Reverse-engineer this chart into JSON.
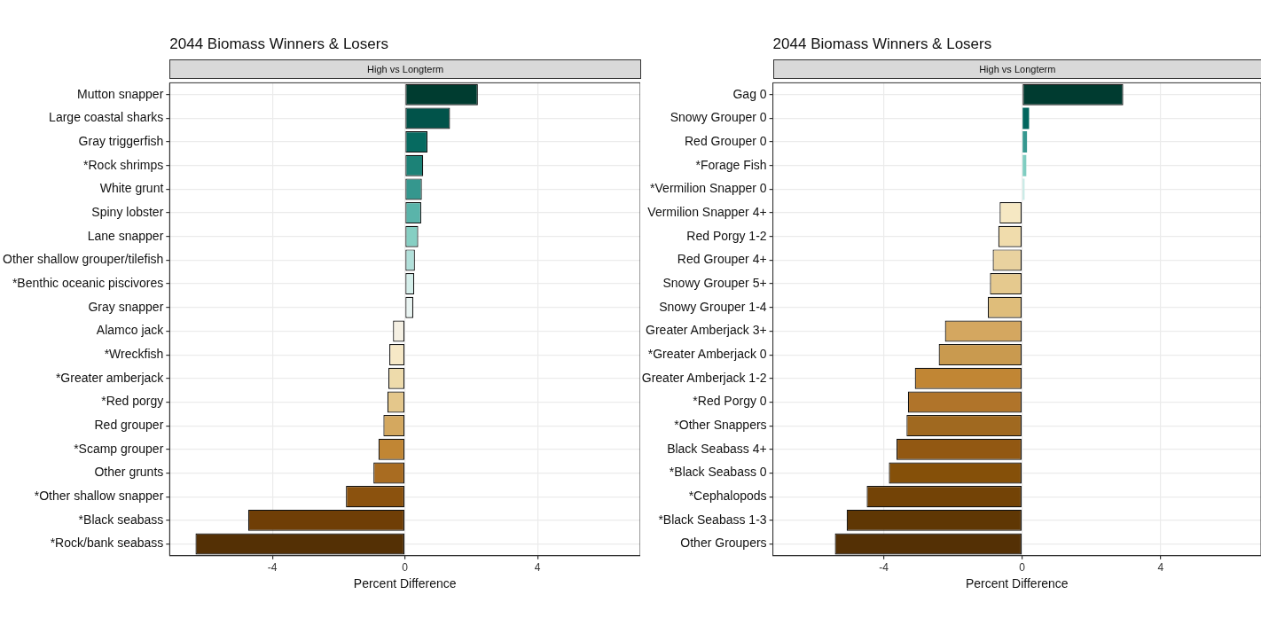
{
  "chart_data": [
    {
      "type": "bar",
      "orientation": "horizontal",
      "title": "2044 Biomass Winners & Losers",
      "subtitle": "High vs Longterm",
      "xlabel": "Percent Difference",
      "grid": true,
      "legend": false,
      "categories": [
        "Mutton snapper",
        "Large coastal sharks",
        "Gray triggerfish",
        "*Rock shrimps",
        "White grunt",
        "Spiny lobster",
        "Lane snapper",
        "Other shallow grouper/tilefish",
        "*Benthic oceanic piscivores",
        "Gray snapper",
        "Alamco jack",
        "*Wreckfish",
        "*Greater amberjack",
        "*Red porgy",
        "Red grouper",
        "*Scamp grouper",
        "Other grunts",
        "*Other shallow snapper",
        "*Black seabass",
        "*Rock/bank seabass"
      ],
      "values": [
        2.2,
        1.36,
        0.68,
        0.55,
        0.51,
        0.49,
        0.4,
        0.3,
        0.28,
        0.25,
        -0.36,
        -0.47,
        -0.5,
        -0.53,
        -0.65,
        -0.8,
        -0.95,
        -1.78,
        -4.73,
        -6.32
      ],
      "colors": [
        "#003c30",
        "#01534a",
        "#066a60",
        "#1c8277",
        "#35978e",
        "#5ab4aa",
        "#86cfc3",
        "#b1e0da",
        "#d4eeea",
        "#e9f4f2",
        "#f5f0e3",
        "#f6e8c6",
        "#eedbab",
        "#e4c78b",
        "#d4a85f",
        "#c18634",
        "#a96c21",
        "#8b520e",
        "#6f3e06",
        "#543005"
      ],
      "xlim": [
        -7.1,
        7.1
      ],
      "xticks": [
        -4,
        0,
        4
      ]
    },
    {
      "type": "bar",
      "orientation": "horizontal",
      "title": "2044 Biomass Winners & Losers",
      "subtitle": "High vs Longterm",
      "xlabel": "Percent Difference",
      "grid": true,
      "legend": false,
      "categories": [
        "Gag 0",
        "Snowy Grouper 0",
        "Red Grouper 0",
        "*Forage Fish",
        "*Vermilion Snapper 0",
        "Vermilion Snapper 4+",
        "Red Porgy 1-2",
        "Red Grouper 4+",
        "Snowy Grouper 5+",
        "Snowy Grouper 1-4",
        "Greater Amberjack 3+",
        "*Greater Amberjack 0",
        "Greater Amberjack 1-2",
        "*Red Porgy 0",
        "*Other Snappers",
        "Black Seabass 4+",
        "*Black Seabass 0",
        "*Cephalopods",
        "*Black Seabass 1-3",
        "Other Groupers"
      ],
      "values": [
        2.92,
        0.2,
        0.14,
        0.12,
        0.07,
        -0.65,
        -0.69,
        -0.85,
        -0.93,
        -0.99,
        -2.23,
        -2.41,
        -3.1,
        -3.3,
        -3.34,
        -3.63,
        -3.85,
        -4.49,
        -5.07,
        -5.41
      ],
      "colors": [
        "#003b30",
        "#01665e",
        "#35978f",
        "#80cdc1",
        "#c7eae5",
        "#f6e8c3",
        "#f0dcac",
        "#e9d29f",
        "#e5c98e",
        "#dfbd7a",
        "#d4a760",
        "#c99a4f",
        "#c18634",
        "#b0742a",
        "#a06920",
        "#925812",
        "#855009",
        "#734306",
        "#5f3704",
        "#543005"
      ],
      "xlim": [
        -7.2,
        6.9
      ],
      "xticks": [
        -4,
        0,
        4
      ]
    }
  ]
}
